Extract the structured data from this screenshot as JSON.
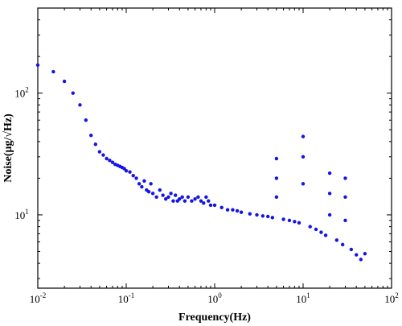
{
  "chart_data": {
    "type": "scatter",
    "title": "",
    "xlabel": "Frequency(Hz)",
    "ylabel": "Noise(μg/√Hz)",
    "x_scale": "log",
    "y_scale": "log",
    "xlim": [
      0.01,
      100
    ],
    "ylim": [
      2.5,
      500
    ],
    "x_ticks": [
      {
        "base": "10",
        "exp": "-2"
      },
      {
        "base": "10",
        "exp": "-1"
      },
      {
        "base": "10",
        "exp": "0"
      },
      {
        "base": "10",
        "exp": "1"
      },
      {
        "base": "10",
        "exp": "2"
      }
    ],
    "y_ticks": [
      {
        "value": 10,
        "base": "10",
        "exp": "1"
      },
      {
        "value": 100,
        "base": "10",
        "exp": "2"
      }
    ],
    "grid": false,
    "legend": "none",
    "marker_color": "#1414e6",
    "series": [
      {
        "x": [
          0.01,
          0.015,
          0.02,
          0.025,
          0.03,
          0.035,
          0.04,
          0.045,
          0.05,
          0.055,
          0.06,
          0.065,
          0.07,
          0.075,
          0.08,
          0.085,
          0.09,
          0.095,
          0.1,
          0.11,
          0.12,
          0.13,
          0.14,
          0.15,
          0.16,
          0.17,
          0.18,
          0.19,
          0.2,
          0.22,
          0.24,
          0.26,
          0.28,
          0.3,
          0.32,
          0.34,
          0.36,
          0.38,
          0.4,
          0.43,
          0.46,
          0.5,
          0.55,
          0.6,
          0.65,
          0.7,
          0.75,
          0.8,
          0.85,
          0.9,
          1.0,
          1.2,
          1.4,
          1.6,
          1.8,
          2.0,
          2.5,
          3.0,
          3.5,
          4.0,
          4.5,
          5.0,
          5.0,
          5.0,
          6.0,
          7.0,
          8.0,
          9.0,
          10.0,
          10.0,
          10.0,
          12.0,
          14.0,
          16.0,
          18.0,
          20.0,
          20.0,
          20.0,
          24.0,
          28.0,
          30.0,
          30.0,
          30.0,
          35.0,
          40.0,
          45.0,
          50.0
        ],
        "y": [
          170,
          150,
          125,
          100,
          80,
          60,
          45,
          38,
          33,
          31,
          29,
          28,
          27,
          26,
          25.5,
          25,
          24.5,
          24,
          23,
          22.5,
          21,
          20,
          18,
          17,
          19,
          16,
          15.5,
          18,
          15,
          14,
          16,
          14.5,
          13.5,
          14,
          15,
          13,
          14.5,
          13,
          13.5,
          14,
          13,
          14,
          13,
          13.5,
          14,
          13,
          12.5,
          14,
          13,
          12,
          12,
          11.5,
          11,
          11,
          10.8,
          10.5,
          10.2,
          10,
          9.8,
          9.7,
          9.5,
          29,
          20,
          14,
          9.2,
          9,
          8.8,
          8.6,
          44,
          30,
          18,
          8,
          7.6,
          7.2,
          6.8,
          22,
          15,
          10,
          6.2,
          5.7,
          20,
          14,
          9,
          5.2,
          4.7,
          4.3,
          4.8
        ]
      }
    ]
  }
}
